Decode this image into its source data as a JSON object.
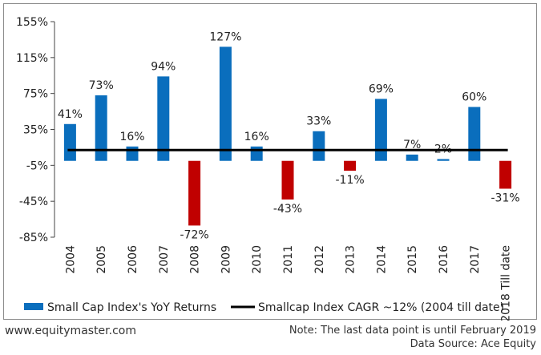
{
  "chart_data": {
    "type": "bar",
    "categories": [
      "2004",
      "2005",
      "2006",
      "2007",
      "2008",
      "2009",
      "2010",
      "2011",
      "2012",
      "2013",
      "2014",
      "2015",
      "2016",
      "2017",
      "2018 Till date"
    ],
    "series": [
      {
        "name": "Small Cap Index's YoY Returns",
        "values": [
          41,
          73,
          16,
          94,
          -72,
          127,
          16,
          -43,
          33,
          -11,
          69,
          7,
          2,
          60,
          -31
        ],
        "value_labels": [
          "41%",
          "73%",
          "16%",
          "94%",
          "-72%",
          "127%",
          "16%",
          "-43%",
          "33%",
          "-11%",
          "69%",
          "7%",
          "2%",
          "60%",
          "-31%"
        ]
      }
    ],
    "reference_line": {
      "name": "Smallcap Index CAGR ~12% (2004 till date)",
      "value": 12
    },
    "yticks": [
      155,
      115,
      75,
      35,
      -5,
      -45,
      -85
    ],
    "ytick_labels": [
      "155%",
      "115%",
      "75%",
      "35%",
      "-5%",
      "-45%",
      "-85%"
    ],
    "ylim": [
      -85,
      155
    ],
    "colors": {
      "positive": "#0a6ebd",
      "negative": "#c00000",
      "line": "#000000"
    },
    "legend_position": "bottom"
  },
  "footer": {
    "website": "www.equitymaster.com",
    "note": "Note: The last data point is until February 2019",
    "source": "Data Source: Ace Equity"
  }
}
